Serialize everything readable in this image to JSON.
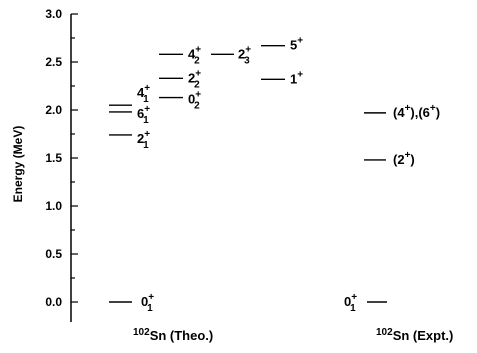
{
  "chart_data": {
    "type": "level-scheme",
    "ylabel": "Energy (MeV)",
    "ylim": [
      0,
      3.0
    ],
    "yticks": [
      "0.0",
      "0.5",
      "1.0",
      "1.5",
      "2.0",
      "2.5",
      "3.0"
    ],
    "columns": [
      {
        "label": "Sn (Theo.)",
        "mass": "102"
      },
      {
        "label": "Sn (Expt.)",
        "mass": "102"
      }
    ],
    "levels": [
      {
        "column": 0,
        "sub": 0,
        "energy": 0.0,
        "spin": "0",
        "parity": "+",
        "index": "1"
      },
      {
        "column": 0,
        "sub": 0,
        "energy": 1.74,
        "spin": "2",
        "parity": "+",
        "index": "1"
      },
      {
        "column": 0,
        "sub": 0,
        "energy": 1.98,
        "spin": "6",
        "parity": "+",
        "index": "1"
      },
      {
        "column": 0,
        "sub": 0,
        "energy": 2.05,
        "spin": "4",
        "parity": "+",
        "index": "1"
      },
      {
        "column": 0,
        "sub": 1,
        "energy": 2.13,
        "spin": "0",
        "parity": "+",
        "index": "2"
      },
      {
        "column": 0,
        "sub": 1,
        "energy": 2.33,
        "spin": "2",
        "parity": "+",
        "index": "2"
      },
      {
        "column": 0,
        "sub": 1,
        "energy": 2.58,
        "spin": "4",
        "parity": "+",
        "index": "2"
      },
      {
        "column": 0,
        "sub": 2,
        "energy": 2.58,
        "spin": "2",
        "parity": "+",
        "index": "3"
      },
      {
        "column": 0,
        "sub": 3,
        "energy": 2.67,
        "spin": "5",
        "parity": "+",
        "index": ""
      },
      {
        "column": 0,
        "sub": 3,
        "energy": 2.32,
        "spin": "1",
        "parity": "+",
        "index": ""
      },
      {
        "column": 1,
        "sub": 0,
        "energy": 0.0,
        "spin": "0",
        "parity": "+",
        "index": "1"
      },
      {
        "column": 1,
        "sub": 0,
        "energy": 1.48,
        "spin": "(2",
        "parity": "+",
        "index": "",
        "suffix": ")"
      },
      {
        "column": 1,
        "sub": 0,
        "energy": 1.97,
        "spin": "(4",
        "parity": "+",
        "index": "",
        "suffix": "),(6",
        "parity2": "+",
        "suffix2": ")"
      }
    ]
  }
}
